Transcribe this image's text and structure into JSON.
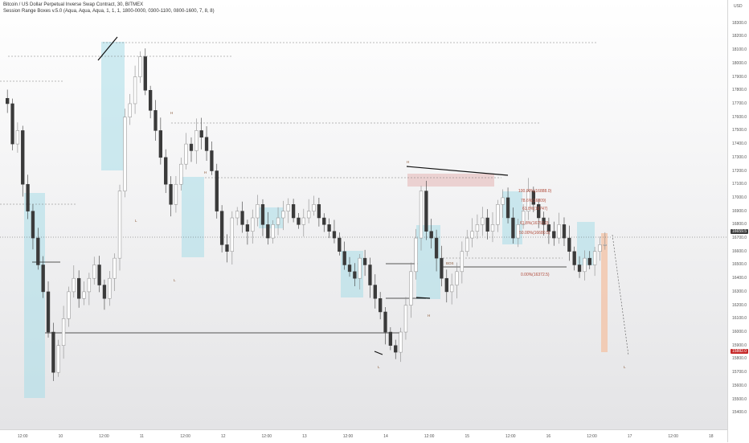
{
  "header": {
    "title": "Bitcoin / US Dollar Perpetual Inverse Swap Contract, 30, BITMEX",
    "indicator": "Session Range Boxes v.5.0 (Aqua, Aqua, Aqua, 1, 1, 1, 1800-0000, 0300-1100, 0800-1600, 7, 8, 8)"
  },
  "price_axis": {
    "currency": "USD",
    "current_price_tag": "16659.5",
    "countdown_tag": "15882.0"
  },
  "colors": {
    "up": "#8b8b8b",
    "down": "#3a3a3a",
    "session_box": "#a8dde8",
    "short_box": "#e8c8c8",
    "target_box": "#f2c9b0",
    "dashed_line": "#7a7a7a",
    "fib_text": "#b04a3a",
    "price_tag_bg": "#3b3b3b",
    "countdown_tag_bg": "#c62828"
  },
  "annotations": {
    "fib_levels": [
      "100.00%(16888.0)",
      "78.6%(16809)",
      "61.8%(16747)",
      "61.8%(16753.0)",
      "50.00%(16680.5)",
      "0.00%(16372.5)"
    ],
    "markers": [
      "H",
      "H",
      "L",
      "L",
      "L",
      "H",
      "H",
      "BOS",
      "L"
    ]
  },
  "chart_data": {
    "type": "candlestick",
    "title": "Bitcoin / US Dollar Perpetual Inverse Swap Contract, 30, BITMEX",
    "ylabel": "USD",
    "ylim": [
      15300,
      18400
    ],
    "y_ticks": [
      15400,
      15500,
      15600,
      15700,
      15800,
      15900,
      16000,
      16100,
      16200,
      16300,
      16400,
      16500,
      16600,
      16700,
      16800,
      16900,
      17000,
      17100,
      17200,
      17300,
      17400,
      17500,
      17600,
      17700,
      17800,
      17900,
      18000,
      18100,
      18200,
      18300
    ],
    "x_ticks": [
      "12:00",
      "10",
      "12:00",
      "11",
      "12:00",
      "12",
      "12:00",
      "13",
      "12:00",
      "14",
      "12:00",
      "15",
      "12:00",
      "16",
      "12:00",
      "17",
      "12:00",
      "18"
    ],
    "price_path": [
      17700,
      17400,
      17500,
      17100,
      16900,
      16700,
      16500,
      16300,
      16000,
      15700,
      15900,
      16100,
      16300,
      16400,
      16250,
      16300,
      16400,
      16500,
      16350,
      16250,
      16400,
      16550,
      17050,
      17600,
      17700,
      17900,
      18050,
      17800,
      17650,
      17500,
      17300,
      17100,
      16950,
      17100,
      17250,
      17400,
      17350,
      17500,
      17450,
      17350,
      17200,
      16900,
      16650,
      16600,
      16850,
      16900,
      16800,
      16750,
      16850,
      16950,
      16800,
      16700,
      16800,
      16850,
      16900,
      16950,
      16850,
      16800,
      16850,
      16900,
      16950,
      16850,
      16800,
      16750,
      16700,
      16600,
      16500,
      16450,
      16400,
      16550,
      16500,
      16350,
      16250,
      16150,
      16000,
      15900,
      15850,
      16000,
      16200,
      16450,
      16700,
      17050,
      16750,
      16700,
      16550,
      16400,
      16300,
      16350,
      16450,
      16600,
      16700,
      16750,
      16800,
      16850,
      16750,
      16800,
      16950,
      17000,
      16850,
      16700,
      16800,
      16900,
      17050,
      16950,
      16850,
      16800,
      16750,
      16700,
      16800,
      16700,
      16600,
      16500,
      16450,
      16550,
      16500,
      16600,
      16650,
      16650
    ],
    "current_price": 16659.5
  }
}
